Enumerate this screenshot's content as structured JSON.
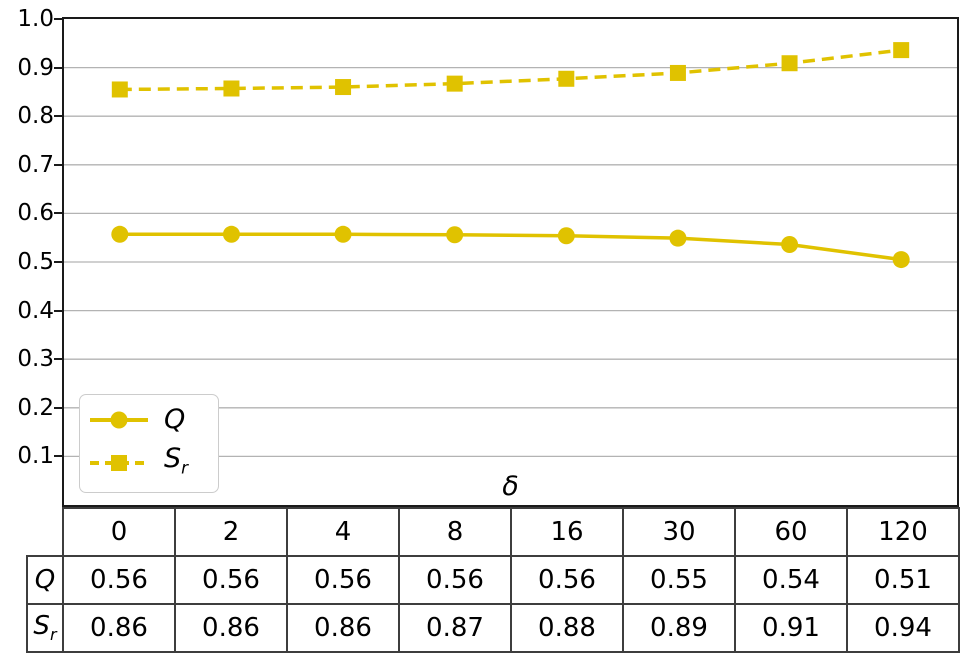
{
  "colors": {
    "series": "#E0C200",
    "grid": "#b3b3b3",
    "spine": "#1a1a1a",
    "table_border": "#3d3d3d",
    "legend_border": "#cccccc"
  },
  "chart_data": {
    "type": "line",
    "title": "",
    "xlabel": "δ",
    "ylabel": "",
    "ylim": [
      0,
      1.0
    ],
    "yticks": [
      "0.1",
      "0.2",
      "0.3",
      "0.4",
      "0.5",
      "0.6",
      "0.7",
      "0.8",
      "0.9",
      "1.0"
    ],
    "grid": "horizontal",
    "legend_position": "lower left",
    "categories": [
      "0",
      "2",
      "4",
      "8",
      "16",
      "30",
      "60",
      "120"
    ],
    "series": [
      {
        "name": "Q",
        "name_sub": "",
        "marker": "circle",
        "line_style": "solid",
        "values": [
          0.557,
          0.557,
          0.557,
          0.556,
          0.554,
          0.549,
          0.536,
          0.505
        ]
      },
      {
        "name": "S",
        "name_sub": "r",
        "marker": "square",
        "line_style": "dashed",
        "values": [
          0.855,
          0.857,
          0.86,
          0.867,
          0.877,
          0.889,
          0.909,
          0.936
        ]
      }
    ]
  },
  "legend": {
    "items": [
      {
        "label": "Q",
        "label_sub": ""
      },
      {
        "label": "S",
        "label_sub": "r"
      }
    ]
  },
  "table": {
    "x_axis_label": "δ",
    "columns": [
      "0",
      "2",
      "4",
      "8",
      "16",
      "30",
      "60",
      "120"
    ],
    "rows": [
      {
        "label": "Q",
        "label_sub": "",
        "cells": [
          "0.56",
          "0.56",
          "0.56",
          "0.56",
          "0.56",
          "0.55",
          "0.54",
          "0.51"
        ]
      },
      {
        "label": "S",
        "label_sub": "r",
        "cells": [
          "0.86",
          "0.86",
          "0.86",
          "0.87",
          "0.88",
          "0.89",
          "0.91",
          "0.94"
        ]
      }
    ]
  }
}
